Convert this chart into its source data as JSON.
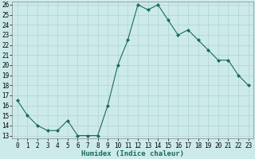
{
  "x": [
    0,
    1,
    2,
    3,
    4,
    5,
    6,
    7,
    8,
    9,
    10,
    11,
    12,
    13,
    14,
    15,
    16,
    17,
    18,
    19,
    20,
    21,
    22,
    23
  ],
  "y": [
    16.5,
    15.0,
    14.0,
    13.5,
    13.5,
    14.5,
    13.0,
    13.0,
    13.0,
    16.0,
    20.0,
    22.5,
    26.0,
    25.5,
    26.0,
    24.5,
    23.0,
    23.5,
    22.5,
    21.5,
    20.5,
    20.5,
    19.0,
    18.0
  ],
  "line_color": "#1a6b5a",
  "marker": "D",
  "marker_size": 2,
  "bg_color": "#cdeaea",
  "grid_color": "#aed4d4",
  "xlabel": "Humidex (Indice chaleur)",
  "ylim": [
    13,
    26
  ],
  "xlim": [
    -0.5,
    23.5
  ],
  "yticks": [
    13,
    14,
    15,
    16,
    17,
    18,
    19,
    20,
    21,
    22,
    23,
    24,
    25,
    26
  ],
  "xticks": [
    0,
    1,
    2,
    3,
    4,
    5,
    6,
    7,
    8,
    9,
    10,
    11,
    12,
    13,
    14,
    15,
    16,
    17,
    18,
    19,
    20,
    21,
    22,
    23
  ],
  "tick_fontsize": 5.5,
  "xlabel_fontsize": 6.5
}
